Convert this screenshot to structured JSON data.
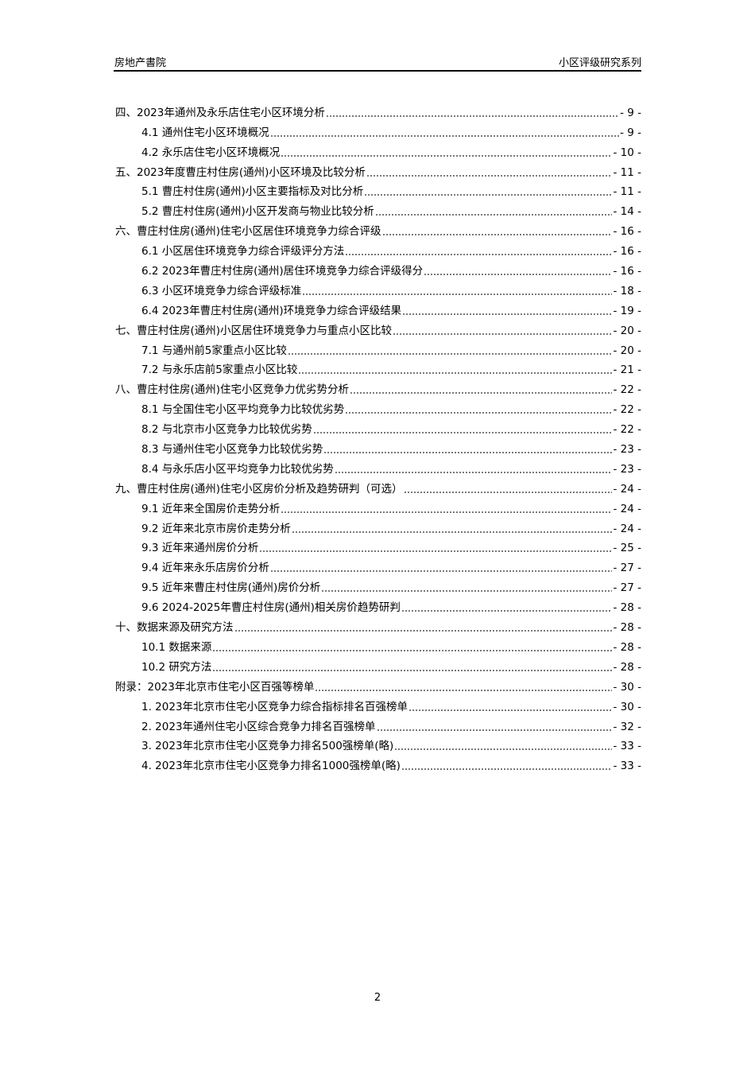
{
  "header": {
    "left": "房地产書院",
    "right": "小区评级研究系列"
  },
  "toc": [
    {
      "level": 1,
      "title": "四、2023年通州及永乐店住宅小区环境分析",
      "page": "- 9 -"
    },
    {
      "level": 2,
      "title": "4.1 通州住宅小区环境概况",
      "page": "- 9 -"
    },
    {
      "level": 2,
      "title": "4.2 永乐店住宅小区环境概况",
      "page": "- 10 -"
    },
    {
      "level": 1,
      "title": "五、2023年度曹庄村住房(通州)小区环境及比较分析",
      "page": "- 11 -"
    },
    {
      "level": 2,
      "title": "5.1 曹庄村住房(通州)小区主要指标及对比分析",
      "page": "- 11 -"
    },
    {
      "level": 2,
      "title": "5.2 曹庄村住房(通州)小区开发商与物业比较分析",
      "page": "- 14 -"
    },
    {
      "level": 1,
      "title": "六、曹庄村住房(通州)住宅小区居住环境竞争力综合评级",
      "page": "- 16 -"
    },
    {
      "level": 2,
      "title": "6.1 小区居住环境竞争力综合评级评分方法",
      "page": "- 16 -"
    },
    {
      "level": 2,
      "title": "6.2 2023年曹庄村住房(通州)居住环境竞争力综合评级得分",
      "page": "- 16 -"
    },
    {
      "level": 2,
      "title": "6.3 小区环境竞争力综合评级标准",
      "page": "- 18 -"
    },
    {
      "level": 2,
      "title": "6.4 2023年曹庄村住房(通州)环境竞争力综合评级结果",
      "page": "- 19 -"
    },
    {
      "level": 1,
      "title": "七、曹庄村住房(通州)小区居住环境竞争力与重点小区比较",
      "page": "- 20 -"
    },
    {
      "level": 2,
      "title": "7.1 与通州前5家重点小区比较",
      "page": "- 20 -"
    },
    {
      "level": 2,
      "title": "7.2 与永乐店前5家重点小区比较",
      "page": "- 21 -"
    },
    {
      "level": 1,
      "title": "八、曹庄村住房(通州)住宅小区竞争力优劣势分析",
      "page": "- 22 -"
    },
    {
      "level": 2,
      "title": "8.1 与全国住宅小区平均竞争力比较优劣势",
      "page": "- 22 -"
    },
    {
      "level": 2,
      "title": "8.2 与北京市小区竞争力比较优劣势",
      "page": "- 22 -"
    },
    {
      "level": 2,
      "title": "8.3 与通州住宅小区竞争力比较优劣势",
      "page": "- 23 -"
    },
    {
      "level": 2,
      "title": "8.4 与永乐店小区平均竞争力比较优劣势",
      "page": "- 23 -"
    },
    {
      "level": 1,
      "title": "九、曹庄村住房(通州)住宅小区房价分析及趋势研判（可选）",
      "page": "- 24 -"
    },
    {
      "level": 2,
      "title": "9.1 近年来全国房价走势分析",
      "page": "- 24 -"
    },
    {
      "level": 2,
      "title": "9.2 近年来北京市房价走势分析",
      "page": "- 24 -"
    },
    {
      "level": 2,
      "title": "9.3 近年来通州房价分析",
      "page": "- 25 -"
    },
    {
      "level": 2,
      "title": "9.4 近年来永乐店房价分析",
      "page": "- 27 -"
    },
    {
      "level": 2,
      "title": "9.5 近年来曹庄村住房(通州)房价分析",
      "page": "- 27 -"
    },
    {
      "level": 2,
      "title": "9.6 2024-2025年曹庄村住房(通州)相关房价趋势研判",
      "page": "- 28 -"
    },
    {
      "level": 1,
      "title": "十、数据来源及研究方法",
      "page": "- 28 -"
    },
    {
      "level": 2,
      "title": "10.1 数据来源",
      "page": "- 28 -"
    },
    {
      "level": 2,
      "title": "10.2 研究方法",
      "page": "- 28 -"
    },
    {
      "level": 1,
      "title": "附录：2023年北京市住宅小区百强等榜单",
      "page": "- 30 -"
    },
    {
      "level": 2,
      "title": "1. 2023年北京市住宅小区竞争力综合指标排名百强榜单",
      "page": "- 30 -"
    },
    {
      "level": 2,
      "title": "2. 2023年通州住宅小区综合竞争力排名百强榜单",
      "page": "- 32 -"
    },
    {
      "level": 2,
      "title": "3. 2023年北京市住宅小区竞争力排名500强榜单(略)",
      "page": "- 33 -"
    },
    {
      "level": 2,
      "title": "4. 2023年北京市住宅小区竞争力排名1000强榜单(略)",
      "page": "- 33 -"
    }
  ],
  "footer": {
    "page_number": "2"
  }
}
